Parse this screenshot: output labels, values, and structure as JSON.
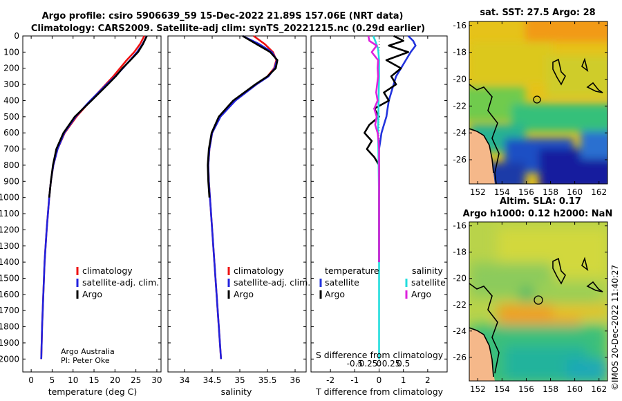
{
  "header": {
    "title1": "Argo profile: csiro 5906639_59 15-Dec-2022 21.89S 157.06E (NRT data)",
    "title2": "Climatology: CARS2009. Satellite-adj clim: synTS_20221215.nc (0.29d earlier)",
    "credit1": "Argo Australia",
    "credit2": "PI: Peter Oke",
    "watermark": "©IMOS 20-Dec-2022 11:40:27"
  },
  "colors": {
    "climatology": "#ee1111",
    "satellite": "#2222dd",
    "argo": "#000000",
    "temp_diff": "#2233dd",
    "sal_diff_sat": "#22dddd",
    "sal_diff_argo": "#dd22dd"
  },
  "chart_data": [
    {
      "type": "line",
      "id": "temperature",
      "xlabel": "temperature (deg C)",
      "ylabel": "",
      "xlim": [
        -2,
        31
      ],
      "ylim": [
        0,
        2080
      ],
      "xticks": [
        "0",
        "5",
        "10",
        "15",
        "20",
        "25",
        "30"
      ],
      "xtick_values": [
        0,
        5,
        10,
        15,
        20,
        25,
        30
      ],
      "yticks": [
        "0",
        "100",
        "200",
        "300",
        "400",
        "500",
        "600",
        "700",
        "800",
        "900",
        "1000",
        "1100",
        "1200",
        "1300",
        "1400",
        "1500",
        "1600",
        "1700",
        "1800",
        "1900",
        "2000"
      ],
      "legend": [
        "climatology",
        "satellite-adj. clim.",
        "Argo"
      ],
      "series": [
        {
          "name": "climatology",
          "color_key": "climatology",
          "depth": [
            0,
            50,
            100,
            150,
            200,
            250,
            300,
            400,
            500,
            600,
            700,
            800,
            900,
            1000,
            1200,
            1400,
            1600,
            1800,
            2000
          ],
          "values": [
            27.0,
            26.0,
            24.6,
            22.8,
            21.2,
            19.6,
            17.8,
            14.2,
            10.8,
            8.0,
            6.3,
            5.3,
            4.7,
            4.3,
            3.7,
            3.2,
            2.9,
            2.6,
            2.4
          ]
        },
        {
          "name": "satellite-adj. clim.",
          "color_key": "satellite",
          "depth": [
            0,
            50,
            100,
            150,
            200,
            250,
            300,
            400,
            500,
            600,
            700,
            800,
            900,
            1000,
            1200,
            1400,
            1600,
            1800,
            2000
          ],
          "values": [
            27.6,
            26.6,
            25.3,
            23.6,
            21.9,
            20.1,
            18.0,
            14.1,
            10.6,
            7.9,
            6.3,
            5.3,
            4.7,
            4.3,
            3.7,
            3.2,
            2.9,
            2.6,
            2.4
          ]
        },
        {
          "name": "Argo",
          "color_key": "argo",
          "depth": [
            0,
            50,
            100,
            150,
            200,
            250,
            300,
            400,
            500,
            600,
            700,
            800,
            900,
            1000
          ],
          "values": [
            27.6,
            26.7,
            25.5,
            23.7,
            21.8,
            20.2,
            18.3,
            14.4,
            10.4,
            7.7,
            6.0,
            5.2,
            4.7,
            4.3
          ]
        }
      ]
    },
    {
      "type": "line",
      "id": "salinity",
      "xlabel": "salinity",
      "xlim": [
        33.7,
        36.2
      ],
      "ylim": [
        0,
        2080
      ],
      "xticks": [
        "34",
        "34.5",
        "35",
        "35.5",
        "36"
      ],
      "xtick_values": [
        34,
        34.5,
        35,
        35.5,
        36
      ],
      "legend": [
        "climatology",
        "satellite-adj. clim.",
        "Argo"
      ],
      "series": [
        {
          "name": "climatology",
          "color_key": "climatology",
          "depth": [
            0,
            50,
            100,
            150,
            200,
            250,
            300,
            400,
            500,
            600,
            700,
            800,
            900,
            1000,
            1200,
            1400,
            1600,
            1800,
            2000
          ],
          "values": [
            35.25,
            35.45,
            35.6,
            35.66,
            35.62,
            35.5,
            35.3,
            34.9,
            34.64,
            34.5,
            34.45,
            34.43,
            34.44,
            34.46,
            34.5,
            34.54,
            34.58,
            34.62,
            34.66
          ]
        },
        {
          "name": "satellite-adj. clim.",
          "color_key": "satellite",
          "depth": [
            0,
            50,
            100,
            150,
            200,
            250,
            300,
            400,
            500,
            600,
            700,
            800,
            900,
            1000,
            1200,
            1400,
            1600,
            1800,
            2000
          ],
          "values": [
            35.05,
            35.35,
            35.58,
            35.67,
            35.63,
            35.52,
            35.3,
            34.92,
            34.65,
            34.5,
            34.45,
            34.43,
            34.44,
            34.46,
            34.5,
            34.54,
            34.58,
            34.62,
            34.66
          ]
        },
        {
          "name": "Argo",
          "color_key": "argo",
          "depth": [
            0,
            50,
            100,
            150,
            200,
            250,
            300,
            400,
            500,
            600,
            700,
            800,
            900,
            1000
          ],
          "values": [
            35.05,
            35.3,
            35.55,
            35.68,
            35.65,
            35.5,
            35.28,
            34.88,
            34.62,
            34.49,
            34.44,
            34.42,
            34.43,
            34.45
          ]
        }
      ]
    },
    {
      "type": "line",
      "id": "differences",
      "xlabel": "T difference from climatology",
      "xlabel_top": "S difference from climatology",
      "xlim": [
        -2.8,
        2.8
      ],
      "ylim": [
        0,
        2080
      ],
      "xticks": [
        "-2",
        "-1",
        "0",
        "1",
        "2"
      ],
      "xtick_values": [
        -2,
        -1,
        0,
        1,
        2
      ],
      "s_ticks": [
        "-0.5",
        "-0.25",
        "0",
        "0.25",
        "0.5"
      ],
      "s_tick_values": [
        -0.5,
        -0.25,
        0,
        0.25,
        0.5
      ],
      "legend": {
        "temperature_title": "temperature",
        "salinity_title": "salinity",
        "items": [
          "satellite",
          "Argo",
          "satellite",
          "Argo"
        ]
      },
      "series": [
        {
          "name": "temperature satellite",
          "color_key": "temp_diff",
          "depth": [
            0,
            30,
            60,
            100,
            150,
            200,
            250,
            300,
            350,
            400,
            450,
            500,
            550,
            600,
            650,
            700,
            800
          ],
          "values": [
            1.2,
            1.4,
            1.5,
            1.3,
            1.1,
            0.9,
            0.7,
            0.6,
            0.5,
            0.4,
            0.35,
            0.3,
            0.2,
            0.1,
            0.05,
            0.0,
            0.0
          ]
        },
        {
          "name": "temperature Argo",
          "color_key": "argo",
          "depth": [
            0,
            30,
            60,
            100,
            150,
            200,
            250,
            300,
            350,
            400,
            450,
            500,
            550,
            600,
            650,
            700,
            750,
            800,
            900,
            1000,
            1100,
            1200,
            1300,
            1400
          ],
          "values": [
            0.6,
            1.0,
            0.4,
            1.2,
            0.3,
            0.9,
            0.5,
            0.7,
            0.2,
            0.4,
            -0.2,
            0.0,
            -0.4,
            -0.6,
            -0.3,
            -0.5,
            -0.2,
            0.0,
            0.0,
            0.0,
            0.0,
            0.0,
            0.0,
            0.0
          ]
        },
        {
          "name": "salinity satellite",
          "color_key": "sal_diff_sat",
          "depth": [
            0,
            30,
            80,
            150,
            250,
            400,
            600,
            800,
            1000,
            1200,
            1400,
            1600,
            1800,
            2000
          ],
          "values": [
            -0.12,
            -0.08,
            -0.02,
            0.0,
            0.0,
            -0.01,
            -0.02,
            -0.01,
            0.0,
            0.0,
            0.0,
            0.0,
            0.0,
            0.0
          ]
        },
        {
          "name": "salinity Argo",
          "color_key": "sal_diff_argo",
          "depth": [
            0,
            30,
            60,
            100,
            150,
            200,
            250,
            300,
            350,
            400,
            450,
            500,
            550,
            600,
            650,
            700,
            800,
            1000,
            1200,
            1400
          ],
          "values": [
            -0.22,
            -0.2,
            -0.05,
            -0.15,
            -0.02,
            -0.03,
            -0.02,
            -0.04,
            -0.06,
            -0.03,
            -0.1,
            -0.05,
            -0.08,
            -0.03,
            -0.01,
            0.0,
            0.0,
            0.0,
            0.0,
            0.0
          ]
        }
      ]
    },
    {
      "type": "heatmap",
      "id": "sst_map",
      "title": "sat. SST: 27.5 Argo: 28",
      "xticks": [
        "152",
        "154",
        "156",
        "158",
        "160",
        "162"
      ],
      "xtick_values": [
        152,
        154,
        156,
        158,
        160,
        162
      ],
      "yticks": [
        "-16",
        "-18",
        "-20",
        "-22",
        "-24",
        "-26"
      ],
      "ytick_values": [
        -16,
        -18,
        -20,
        -22,
        -24,
        -26
      ],
      "xlim": [
        151.3,
        162.7
      ],
      "ylim": [
        -27.8,
        -15.7
      ],
      "argo_position": [
        157.06,
        -21.89
      ]
    },
    {
      "type": "heatmap",
      "id": "sla_map",
      "title": "Altim. SLA: 0.17",
      "title2": "Argo h1000: 0.12 h2000: NaN",
      "xticks": [
        "152",
        "154",
        "156",
        "158",
        "160",
        "162"
      ],
      "xtick_values": [
        152,
        154,
        156,
        158,
        160,
        162
      ],
      "yticks": [
        "-16",
        "-18",
        "-20",
        "-22",
        "-24",
        "-26"
      ],
      "ytick_values": [
        -16,
        -18,
        -20,
        -22,
        -24,
        -26
      ],
      "xlim": [
        151.3,
        162.7
      ],
      "ylim": [
        -27.8,
        -15.7
      ],
      "argo_position": [
        157.06,
        -21.89
      ]
    }
  ]
}
